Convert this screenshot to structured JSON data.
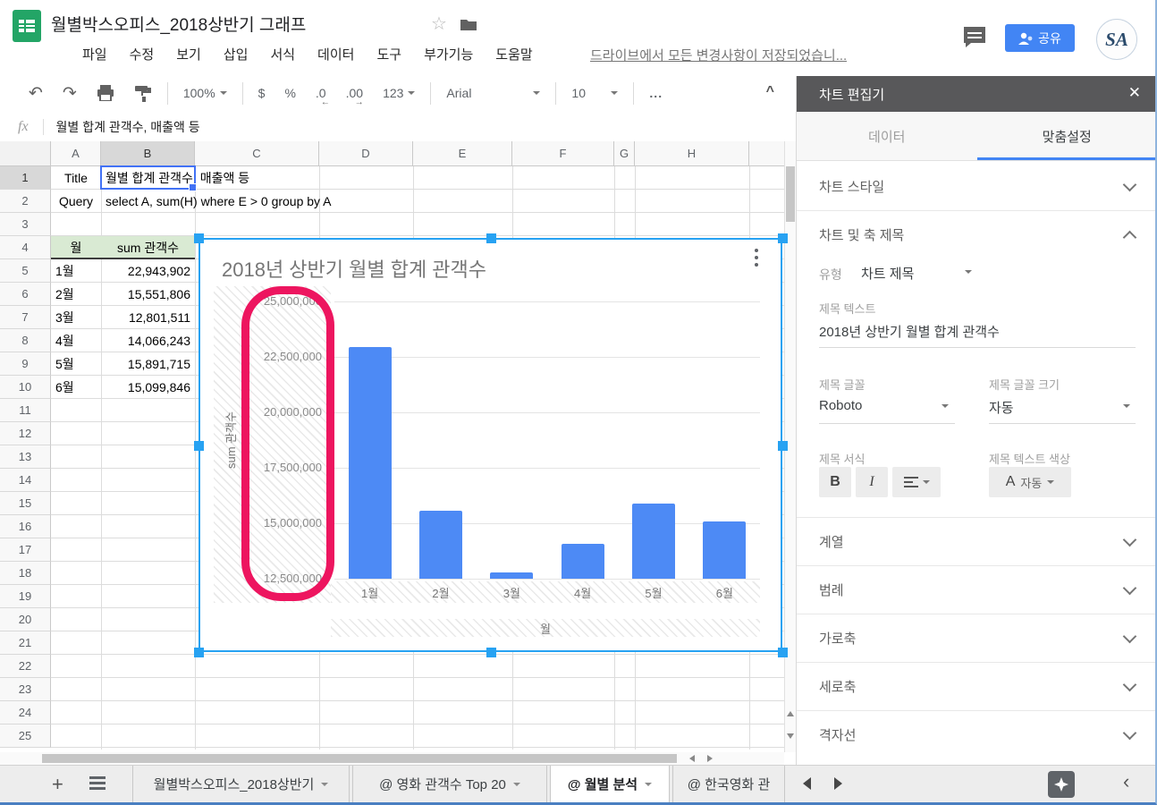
{
  "titlebar": {
    "doc_title": "월별박스오피스_2018상반기 그래프",
    "menus": [
      "파일",
      "수정",
      "보기",
      "삽입",
      "서식",
      "데이터",
      "도구",
      "부가기능",
      "도움말"
    ],
    "save_status": "드라이브에서 모든 변경사항이 저장되었습니...",
    "share_label": "공유",
    "avatar_monogram": "SA",
    "star_icon": "☆"
  },
  "toolbar": {
    "undo_icon": "↶",
    "redo_icon": "↷",
    "zoom": "100%",
    "currency": "$",
    "percent": "%",
    "dec_decrease": ".0",
    "dec_decrease_arrow": "←",
    "dec_increase": ".00",
    "dec_increase_arrow": "→",
    "format_123": "123",
    "font_name": "Arial",
    "font_size": "10",
    "more": "...",
    "collapse": "^"
  },
  "formula_bar": {
    "fx": "fx",
    "value": "월별 합계 관객수, 매출액 등"
  },
  "grid": {
    "col_headers": [
      "A",
      "B",
      "C",
      "D",
      "E",
      "F",
      "G",
      "H"
    ],
    "selected_col": "B",
    "row_count": 25,
    "selected_row": 1,
    "cells": {
      "a1": "Title",
      "b1": "월별 합계 관객수, 매출액 등",
      "a2": "Query",
      "b2": "select A, sum(H) where E > 0 group by A"
    },
    "table": {
      "headers": [
        "월",
        "sum 관객수"
      ],
      "rows": [
        [
          "1월",
          "22,943,902"
        ],
        [
          "2월",
          "15,551,806"
        ],
        [
          "3월",
          "12,801,511"
        ],
        [
          "4월",
          "14,066,243"
        ],
        [
          "5월",
          "15,891,715"
        ],
        [
          "6월",
          "15,099,846"
        ]
      ]
    }
  },
  "chart_data": {
    "type": "bar",
    "title": "2018년 상반기 월별 합계 관객수",
    "categories": [
      "1월",
      "2월",
      "3월",
      "4월",
      "5월",
      "6월"
    ],
    "values": [
      22943902,
      15551806,
      12801511,
      14066243,
      15891715,
      15099846
    ],
    "xlabel": "월",
    "ylabel": "sum 관객수",
    "ylim": [
      12500000,
      25000000
    ],
    "ytick_labels_top_to_bottom": [
      "25,000,000",
      "22,500,000",
      "20,000,000",
      "17,500,000",
      "15,000,000",
      "12,500,000"
    ],
    "grid": true,
    "legend_position": "none",
    "bar_color": "#4d8af5",
    "annotation": "pink rounded rectangle drawn around the vertical-axis tick labels",
    "annotation_color": "#ed155f"
  },
  "chart_editor": {
    "title": "차트 편집기",
    "close_icon": "✕",
    "tab_data": "데이터",
    "tab_custom": "맞춤설정",
    "section_style": "차트 스타일",
    "section_titles": "차트 및 축 제목",
    "type_label": "유형",
    "type_value": "차트 제목",
    "title_text_label": "제목 텍스트",
    "title_text_value": "2018년 상반기 월별 합계 관객수",
    "font_label": "제목 글꼴",
    "font_value": "Roboto",
    "size_label": "제목 글꼴 크기",
    "size_value": "자동",
    "format_label": "제목 서식",
    "bold_label": "B",
    "italic_label": "I",
    "color_label": "제목 텍스트 색상",
    "color_a": "A",
    "color_value": "자동",
    "collapsed_sections": [
      "계열",
      "범례",
      "가로축",
      "세로축",
      "격자선"
    ]
  },
  "sheet_bar": {
    "tabs": [
      {
        "label": "월별박스오피스_2018상반기",
        "active": false,
        "arrow": true
      },
      {
        "label": "@ 영화 관객수 Top 20",
        "active": false,
        "arrow": true
      },
      {
        "label": "@ 월별 분석",
        "active": true,
        "arrow": true
      },
      {
        "label": "@ 한국영화 관",
        "active": false,
        "arrow": false
      }
    ]
  },
  "colors": {
    "accent_blue": "#4285f4",
    "selection_blue": "#27a2f2",
    "cell_selection_blue": "#4272f5",
    "bar_blue": "#4d8af5",
    "annotation_pink": "#ed155f",
    "table_header_green": "#d9ead3",
    "sheets_green": "#23a566",
    "panel_header_gray": "#58585a"
  }
}
